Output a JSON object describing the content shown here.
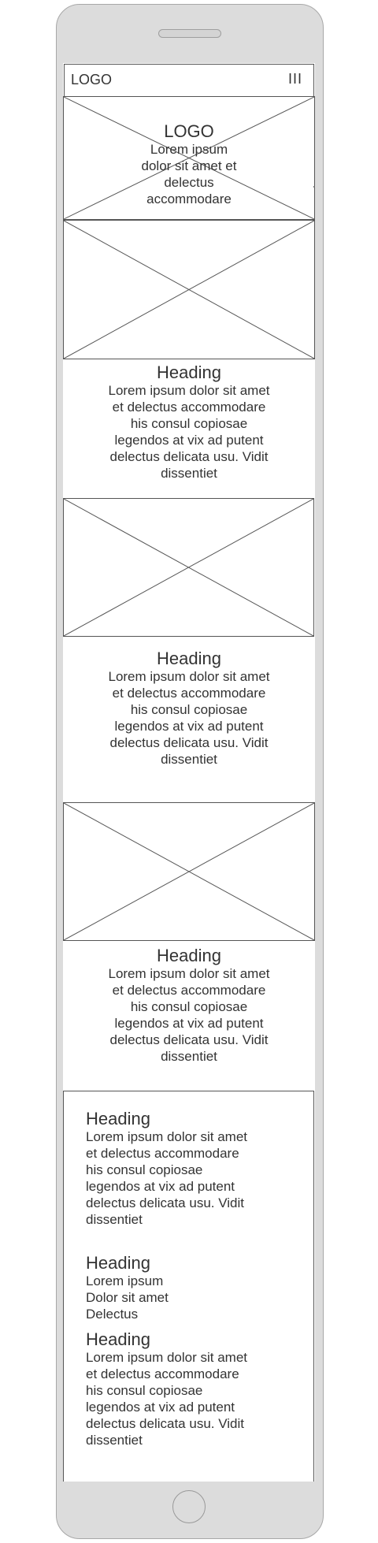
{
  "nav": {
    "logo": "LOGO",
    "menu_icon": "III"
  },
  "hero": {
    "logo": "LOGO",
    "lines": [
      "Lorem ipsum",
      "dolor sit amet et",
      "delectus",
      "accommodare"
    ]
  },
  "sections": [
    {
      "heading": "Heading",
      "lines": [
        "Lorem ipsum dolor sit amet",
        "et delectus accommodare",
        "his consul copiosae",
        "legendos at vix ad putent",
        "delectus delicata usu. Vidit",
        "dissentiet"
      ]
    },
    {
      "heading": "Heading",
      "lines": [
        "Lorem ipsum dolor sit amet",
        "et delectus accommodare",
        "his consul copiosae",
        "legendos at vix ad putent",
        "delectus delicata usu. Vidit",
        "dissentiet"
      ]
    },
    {
      "heading": "Heading",
      "lines": [
        "Lorem ipsum dolor sit amet",
        "et delectus accommodare",
        "his consul copiosae",
        "legendos at vix ad putent",
        "delectus delicata usu. Vidit",
        "dissentiet"
      ]
    }
  ],
  "footer": {
    "block1": {
      "heading": "Heading",
      "lines": [
        "Lorem ipsum dolor sit amet",
        "et delectus accommodare",
        "his consul copiosae",
        "legendos at vix ad putent",
        "delectus delicata usu. Vidit",
        "dissentiet"
      ]
    },
    "block2": {
      "heading": "Heading",
      "lines": [
        "Lorem ipsum",
        "Dolor sit amet",
        "Delectus"
      ]
    },
    "block3": {
      "heading": "Heading",
      "lines": [
        "Lorem ipsum dolor sit amet",
        "et delectus accommodare",
        "his consul copiosae",
        "legendos at vix ad putent",
        "delectus delicata usu. Vidit",
        "dissentiet"
      ]
    }
  },
  "colors": {
    "device": "#dcdcdc",
    "stroke": "#555555",
    "text": "#333333"
  }
}
